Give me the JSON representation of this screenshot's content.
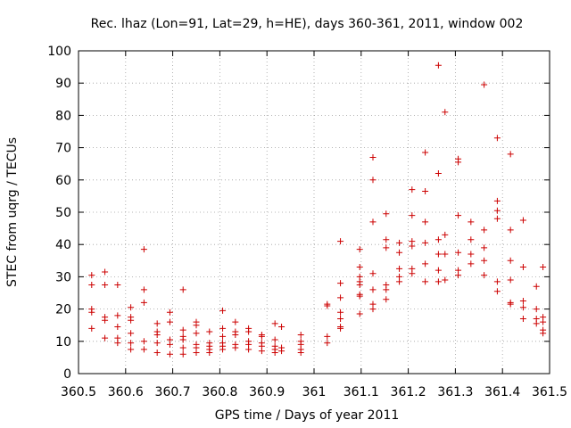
{
  "chart_data": {
    "type": "scatter",
    "title": "Rec. lhaz (Lon=91, Lat=29, h=HE), days 360-361, 2011, window 002",
    "xlabel": "GPS time / Days of year 2011",
    "ylabel": "STEC from uqrg / TECUs",
    "xlim": [
      360.5,
      361.5
    ],
    "ylim": [
      0,
      100
    ],
    "x_ticks": [
      360.5,
      360.6,
      360.7,
      360.8,
      360.9,
      361,
      361.1,
      361.2,
      361.3,
      361.4,
      361.5
    ],
    "x_tick_labels": [
      "360.5",
      "360.6",
      "360.7",
      "360.8",
      "360.9",
      "361",
      "361.1",
      "361.2",
      "361.3",
      "361.4",
      "361.5"
    ],
    "y_ticks": [
      0,
      10,
      20,
      30,
      40,
      50,
      60,
      70,
      80,
      90,
      100
    ],
    "y_tick_labels": [
      "0",
      "10",
      "20",
      "30",
      "40",
      "50",
      "60",
      "70",
      "80",
      "90",
      "100"
    ],
    "grid": true,
    "marker": "plus",
    "color": "#cc0000",
    "points": [
      [
        360.528,
        30.5
      ],
      [
        360.528,
        27.5
      ],
      [
        360.528,
        20.0
      ],
      [
        360.528,
        19.0
      ],
      [
        360.528,
        14.0
      ],
      [
        360.556,
        31.5
      ],
      [
        360.556,
        27.5
      ],
      [
        360.556,
        17.5
      ],
      [
        360.556,
        16.5
      ],
      [
        360.556,
        11.0
      ],
      [
        360.583,
        27.5
      ],
      [
        360.583,
        18.0
      ],
      [
        360.583,
        14.5
      ],
      [
        360.583,
        11.0
      ],
      [
        360.583,
        9.5
      ],
      [
        360.611,
        20.5
      ],
      [
        360.611,
        17.5
      ],
      [
        360.611,
        16.5
      ],
      [
        360.611,
        12.5
      ],
      [
        360.611,
        9.5
      ],
      [
        360.611,
        7.5
      ],
      [
        360.639,
        38.5
      ],
      [
        360.639,
        26.0
      ],
      [
        360.639,
        22.0
      ],
      [
        360.639,
        10.0
      ],
      [
        360.639,
        7.5
      ],
      [
        360.667,
        15.5
      ],
      [
        360.667,
        13.0
      ],
      [
        360.667,
        12.0
      ],
      [
        360.667,
        9.5
      ],
      [
        360.667,
        6.5
      ],
      [
        360.694,
        19.0
      ],
      [
        360.694,
        16.0
      ],
      [
        360.694,
        10.5
      ],
      [
        360.694,
        9.0
      ],
      [
        360.694,
        6.0
      ],
      [
        360.722,
        26.0
      ],
      [
        360.722,
        13.5
      ],
      [
        360.722,
        11.5
      ],
      [
        360.722,
        10.5
      ],
      [
        360.722,
        8.0
      ],
      [
        360.722,
        6.0
      ],
      [
        360.75,
        16.0
      ],
      [
        360.75,
        15.0
      ],
      [
        360.75,
        12.5
      ],
      [
        360.75,
        9.0
      ],
      [
        360.75,
        8.0
      ],
      [
        360.75,
        6.5
      ],
      [
        360.778,
        13.0
      ],
      [
        360.778,
        9.5
      ],
      [
        360.778,
        8.5
      ],
      [
        360.778,
        7.5
      ],
      [
        360.778,
        6.5
      ],
      [
        360.806,
        19.5
      ],
      [
        360.806,
        14.0
      ],
      [
        360.806,
        11.5
      ],
      [
        360.806,
        9.5
      ],
      [
        360.806,
        8.5
      ],
      [
        360.806,
        7.5
      ],
      [
        360.833,
        16.0
      ],
      [
        360.833,
        13.0
      ],
      [
        360.833,
        12.0
      ],
      [
        360.833,
        9.0
      ],
      [
        360.833,
        8.0
      ],
      [
        360.861,
        14.0
      ],
      [
        360.861,
        13.0
      ],
      [
        360.861,
        10.0
      ],
      [
        360.861,
        9.0
      ],
      [
        360.861,
        7.5
      ],
      [
        360.889,
        12.0
      ],
      [
        360.889,
        11.5
      ],
      [
        360.889,
        9.5
      ],
      [
        360.889,
        8.5
      ],
      [
        360.889,
        7.0
      ],
      [
        360.917,
        15.5
      ],
      [
        360.917,
        10.5
      ],
      [
        360.917,
        8.5
      ],
      [
        360.917,
        7.5
      ],
      [
        360.917,
        6.5
      ],
      [
        360.931,
        14.5
      ],
      [
        360.931,
        8.0
      ],
      [
        360.931,
        7.0
      ],
      [
        360.972,
        12.0
      ],
      [
        360.972,
        10.0
      ],
      [
        360.972,
        9.0
      ],
      [
        360.972,
        7.5
      ],
      [
        360.972,
        6.5
      ],
      [
        361.028,
        21.5
      ],
      [
        361.028,
        21.0
      ],
      [
        361.028,
        11.5
      ],
      [
        361.028,
        9.5
      ],
      [
        361.056,
        41.0
      ],
      [
        361.056,
        28.0
      ],
      [
        361.056,
        23.5
      ],
      [
        361.056,
        19.0
      ],
      [
        361.056,
        17.0
      ],
      [
        361.056,
        14.5
      ],
      [
        361.056,
        14.0
      ],
      [
        361.097,
        38.5
      ],
      [
        361.097,
        33.0
      ],
      [
        361.097,
        30.0
      ],
      [
        361.097,
        28.5
      ],
      [
        361.097,
        27.5
      ],
      [
        361.097,
        24.5
      ],
      [
        361.097,
        24.0
      ],
      [
        361.097,
        18.5
      ],
      [
        361.125,
        67.0
      ],
      [
        361.125,
        60.0
      ],
      [
        361.125,
        47.0
      ],
      [
        361.125,
        31.0
      ],
      [
        361.125,
        26.0
      ],
      [
        361.125,
        21.5
      ],
      [
        361.125,
        20.0
      ],
      [
        361.153,
        49.5
      ],
      [
        361.153,
        41.5
      ],
      [
        361.153,
        39.0
      ],
      [
        361.153,
        27.5
      ],
      [
        361.153,
        26.0
      ],
      [
        361.153,
        23.0
      ],
      [
        361.181,
        40.5
      ],
      [
        361.181,
        37.5
      ],
      [
        361.181,
        32.5
      ],
      [
        361.181,
        30.0
      ],
      [
        361.181,
        28.5
      ],
      [
        361.208,
        57.0
      ],
      [
        361.208,
        49.0
      ],
      [
        361.208,
        41.0
      ],
      [
        361.208,
        39.5
      ],
      [
        361.208,
        32.5
      ],
      [
        361.208,
        31.0
      ],
      [
        361.236,
        68.5
      ],
      [
        361.236,
        56.5
      ],
      [
        361.236,
        47.0
      ],
      [
        361.236,
        40.5
      ],
      [
        361.236,
        34.0
      ],
      [
        361.236,
        28.5
      ],
      [
        361.264,
        95.5
      ],
      [
        361.264,
        62.0
      ],
      [
        361.264,
        41.5
      ],
      [
        361.264,
        37.0
      ],
      [
        361.264,
        32.0
      ],
      [
        361.264,
        28.5
      ],
      [
        361.278,
        81.0
      ],
      [
        361.278,
        43.0
      ],
      [
        361.278,
        37.0
      ],
      [
        361.278,
        29.0
      ],
      [
        361.306,
        66.5
      ],
      [
        361.306,
        65.5
      ],
      [
        361.306,
        49.0
      ],
      [
        361.306,
        37.5
      ],
      [
        361.306,
        32.0
      ],
      [
        361.306,
        30.5
      ],
      [
        361.333,
        47.0
      ],
      [
        361.333,
        41.5
      ],
      [
        361.333,
        37.0
      ],
      [
        361.333,
        34.0
      ],
      [
        361.361,
        89.5
      ],
      [
        361.361,
        44.5
      ],
      [
        361.361,
        39.0
      ],
      [
        361.361,
        35.0
      ],
      [
        361.361,
        30.5
      ],
      [
        361.389,
        73.0
      ],
      [
        361.389,
        53.5
      ],
      [
        361.389,
        50.5
      ],
      [
        361.389,
        48.0
      ],
      [
        361.389,
        28.5
      ],
      [
        361.389,
        25.5
      ],
      [
        361.417,
        68.0
      ],
      [
        361.417,
        44.5
      ],
      [
        361.417,
        35.0
      ],
      [
        361.417,
        29.0
      ],
      [
        361.417,
        22.0
      ],
      [
        361.417,
        21.5
      ],
      [
        361.444,
        47.5
      ],
      [
        361.444,
        33.0
      ],
      [
        361.444,
        22.5
      ],
      [
        361.444,
        20.5
      ],
      [
        361.444,
        17.0
      ],
      [
        361.472,
        27.0
      ],
      [
        361.472,
        20.0
      ],
      [
        361.472,
        17.0
      ],
      [
        361.472,
        15.5
      ],
      [
        361.486,
        33.0
      ],
      [
        361.486,
        17.5
      ],
      [
        361.486,
        16.0
      ],
      [
        361.486,
        13.5
      ],
      [
        361.486,
        12.5
      ]
    ]
  }
}
